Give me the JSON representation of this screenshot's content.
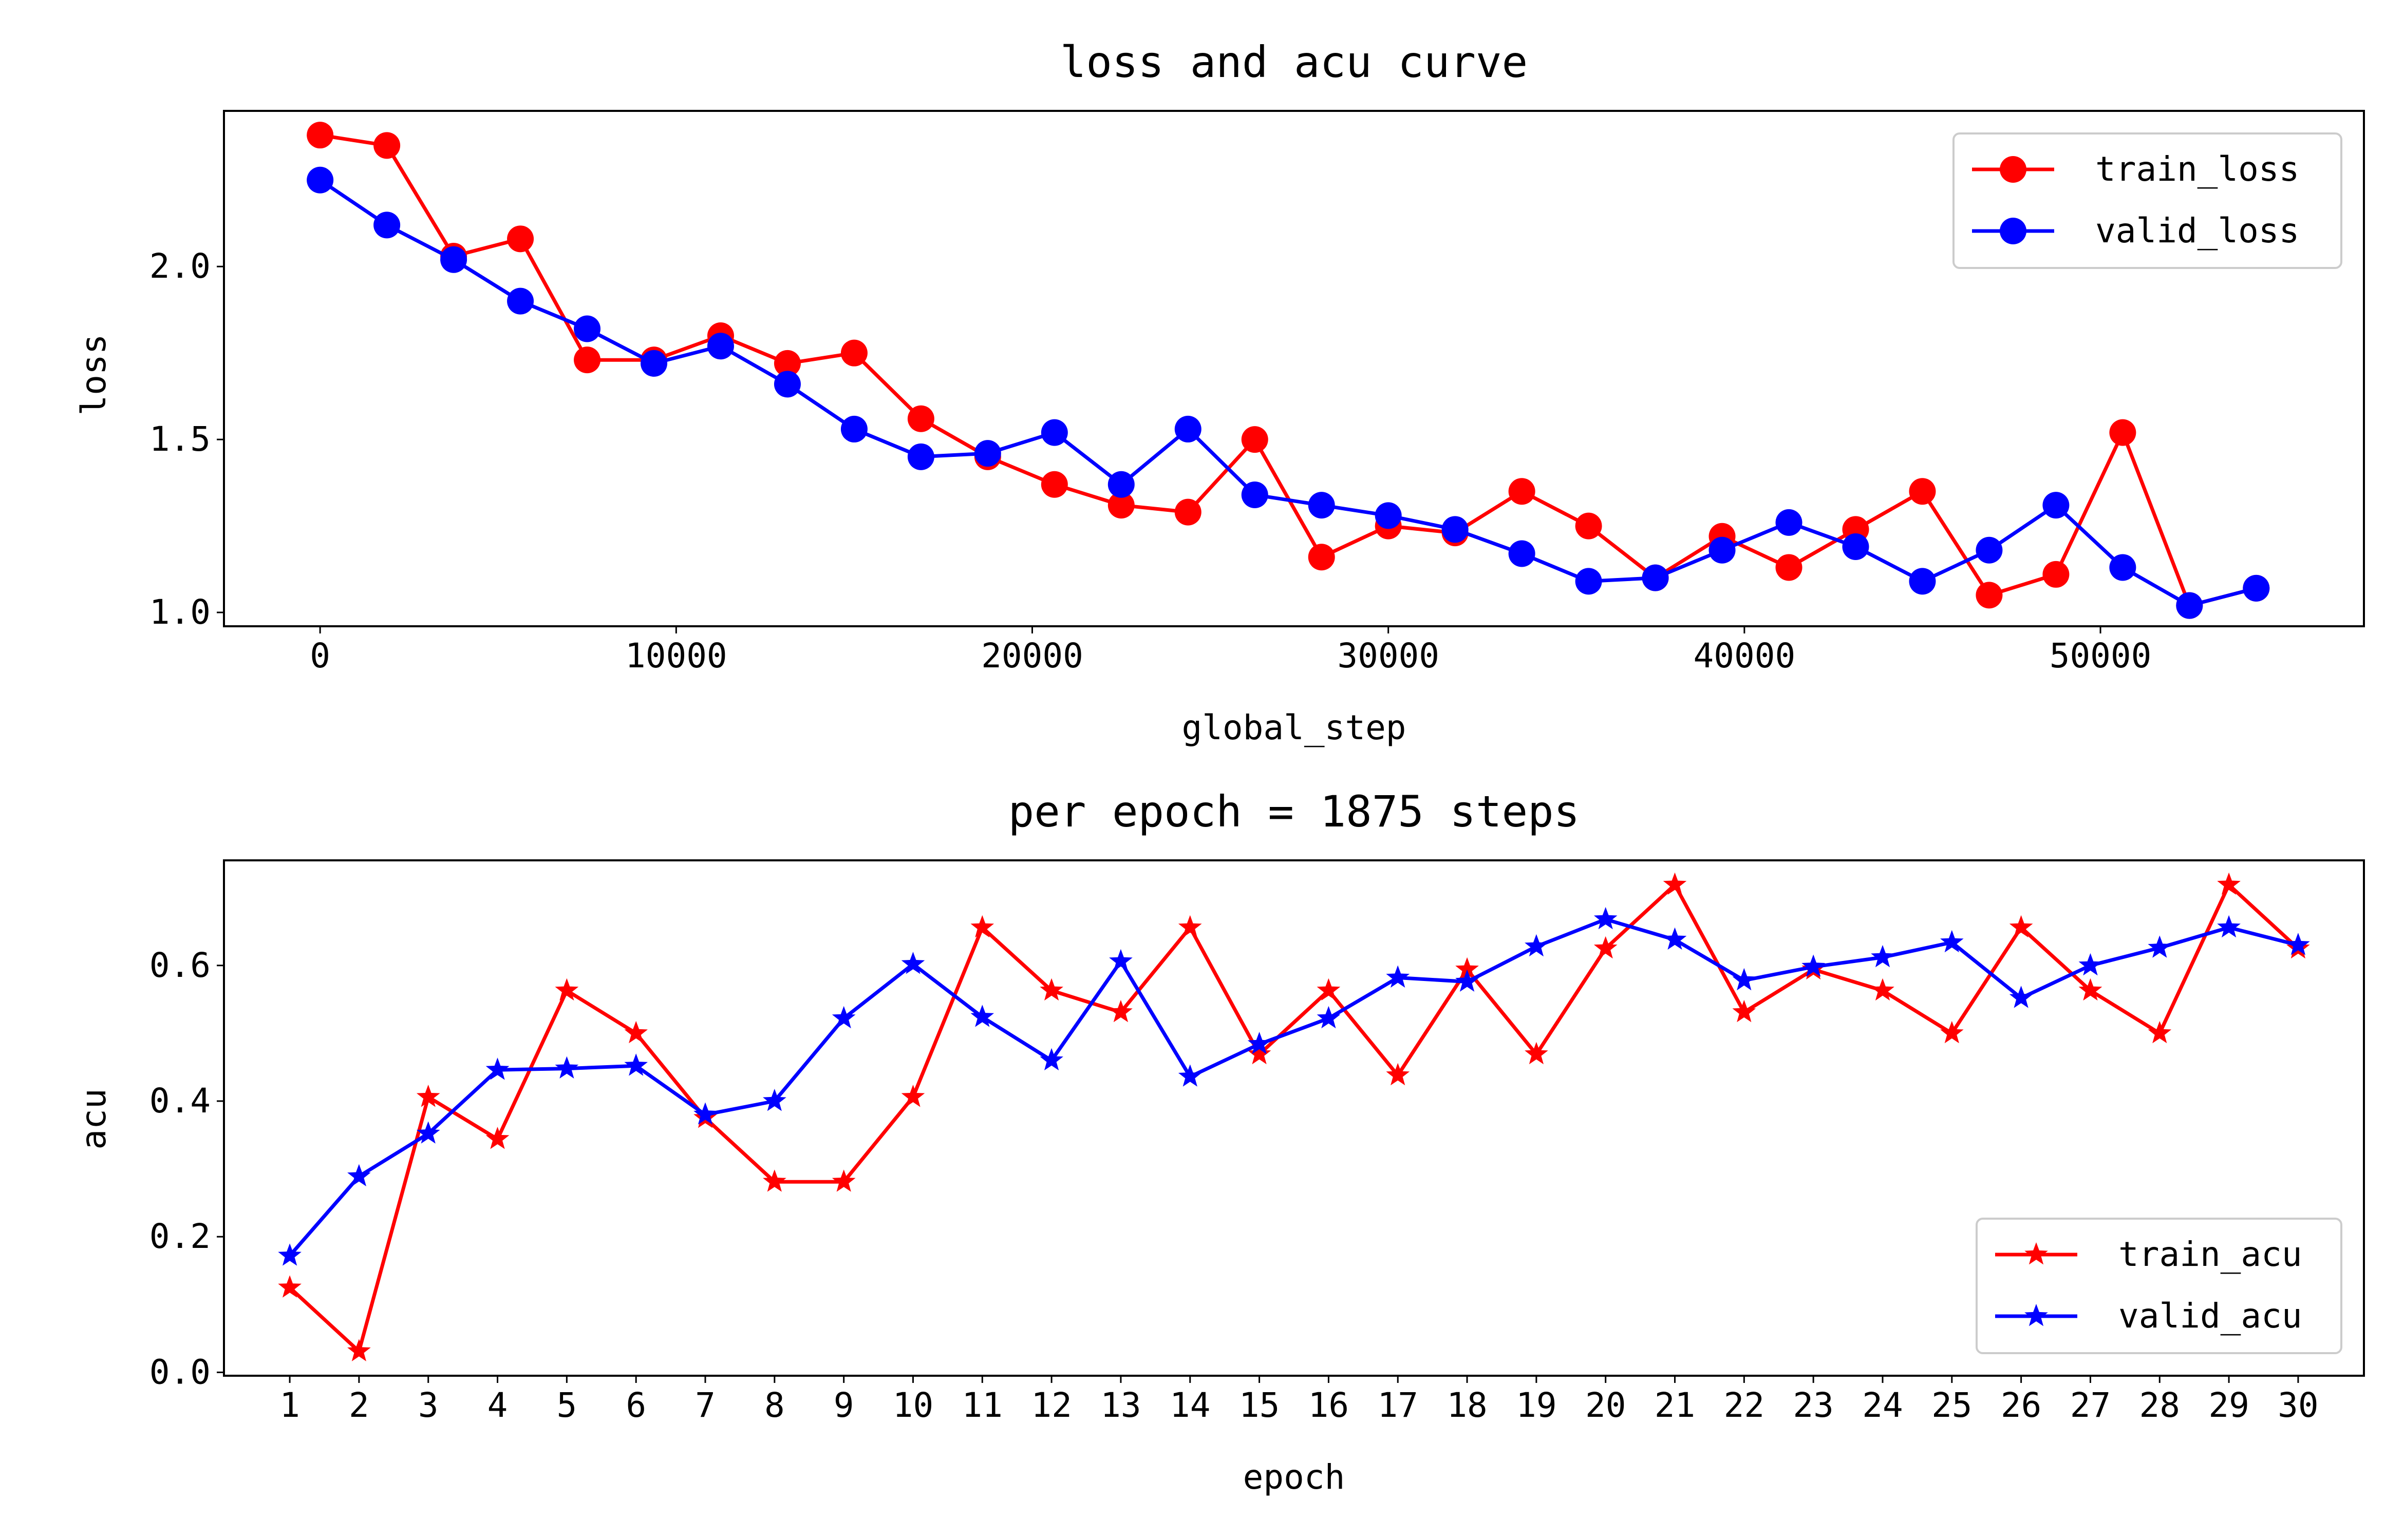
{
  "colors": {
    "train": "#ff0000",
    "valid": "#0000ff",
    "axis": "#000000",
    "background": "#ffffff",
    "legend_border": "#cccccc"
  },
  "chart_data": [
    {
      "type": "line",
      "title": "loss and acu curve",
      "xlabel": "global_step",
      "ylabel": "loss",
      "xlim": [
        -2700,
        57400
      ],
      "ylim": [
        0.96,
        2.45
      ],
      "xticks": [
        0,
        10000,
        20000,
        30000,
        40000,
        50000
      ],
      "xtick_labels": [
        "0",
        "10000",
        "20000",
        "30000",
        "40000",
        "50000"
      ],
      "yticks": [
        1.0,
        1.5,
        2.0
      ],
      "ytick_labels": [
        "1.0",
        "1.5",
        "2.0"
      ],
      "grid": false,
      "legend_position": "top-right",
      "marker": "circle",
      "x": [
        0,
        1875,
        3750,
        5625,
        7500,
        9375,
        11250,
        13125,
        15000,
        16875,
        18750,
        20625,
        22500,
        24375,
        26250,
        28125,
        30000,
        31875,
        33750,
        35625,
        37500,
        39375,
        41250,
        43125,
        45000,
        46875,
        48750,
        50625,
        52500,
        54375
      ],
      "series": [
        {
          "name": "train_loss",
          "color": "#ff0000",
          "values": [
            2.38,
            2.35,
            2.03,
            2.08,
            1.73,
            1.73,
            1.8,
            1.72,
            1.75,
            1.56,
            1.45,
            1.37,
            1.31,
            1.29,
            1.5,
            1.16,
            1.25,
            1.23,
            1.35,
            1.25,
            1.1,
            1.22,
            1.13,
            1.24,
            1.35,
            1.05,
            1.11,
            1.52,
            1.02,
            1.07
          ]
        },
        {
          "name": "valid_loss",
          "color": "#0000ff",
          "values": [
            2.25,
            2.12,
            2.02,
            1.9,
            1.82,
            1.72,
            1.77,
            1.66,
            1.53,
            1.45,
            1.46,
            1.52,
            1.37,
            1.53,
            1.34,
            1.31,
            1.28,
            1.24,
            1.17,
            1.09,
            1.1,
            1.18,
            1.26,
            1.19,
            1.09,
            1.18,
            1.31,
            1.13,
            1.02,
            1.07
          ]
        }
      ]
    },
    {
      "type": "line",
      "title": "per epoch = 1875 steps",
      "xlabel": "epoch",
      "ylabel": "acu",
      "xlim": [
        0.05,
        30.95
      ],
      "ylim": [
        -0.005,
        0.755
      ],
      "xticks": [
        1,
        2,
        3,
        4,
        5,
        6,
        7,
        8,
        9,
        10,
        11,
        12,
        13,
        14,
        15,
        16,
        17,
        18,
        19,
        20,
        21,
        22,
        23,
        24,
        25,
        26,
        27,
        28,
        29,
        30
      ],
      "xtick_labels": [
        "1",
        "2",
        "3",
        "4",
        "5",
        "6",
        "7",
        "8",
        "9",
        "10",
        "11",
        "12",
        "13",
        "14",
        "15",
        "16",
        "17",
        "18",
        "19",
        "20",
        "21",
        "22",
        "23",
        "24",
        "25",
        "26",
        "27",
        "28",
        "29",
        "30"
      ],
      "yticks": [
        0.0,
        0.2,
        0.4,
        0.6
      ],
      "ytick_labels": [
        "0.0",
        "0.2",
        "0.4",
        "0.6"
      ],
      "grid": false,
      "legend_position": "bottom-right",
      "marker": "star",
      "x": [
        1,
        2,
        3,
        4,
        5,
        6,
        7,
        8,
        9,
        10,
        11,
        12,
        13,
        14,
        15,
        16,
        17,
        18,
        19,
        20,
        21,
        22,
        23,
        24,
        25,
        26,
        27,
        28,
        29,
        30
      ],
      "series": [
        {
          "name": "train_acu",
          "color": "#ff0000",
          "values": [
            0.125,
            0.031,
            0.406,
            0.344,
            0.563,
            0.5,
            0.375,
            0.281,
            0.281,
            0.406,
            0.656,
            0.563,
            0.531,
            0.656,
            0.469,
            0.563,
            0.438,
            0.594,
            0.469,
            0.625,
            0.719,
            0.531,
            0.594,
            0.563,
            0.5,
            0.656,
            0.563,
            0.5,
            0.719,
            0.625
          ]
        },
        {
          "name": "valid_acu",
          "color": "#0000ff",
          "values": [
            0.172,
            0.289,
            0.352,
            0.446,
            0.448,
            0.452,
            0.38,
            0.4,
            0.522,
            0.602,
            0.524,
            0.46,
            0.606,
            0.436,
            0.484,
            0.522,
            0.582,
            0.576,
            0.628,
            0.668,
            0.638,
            0.578,
            0.598,
            0.612,
            0.634,
            0.552,
            0.6,
            0.626,
            0.656,
            0.63
          ]
        }
      ]
    }
  ]
}
